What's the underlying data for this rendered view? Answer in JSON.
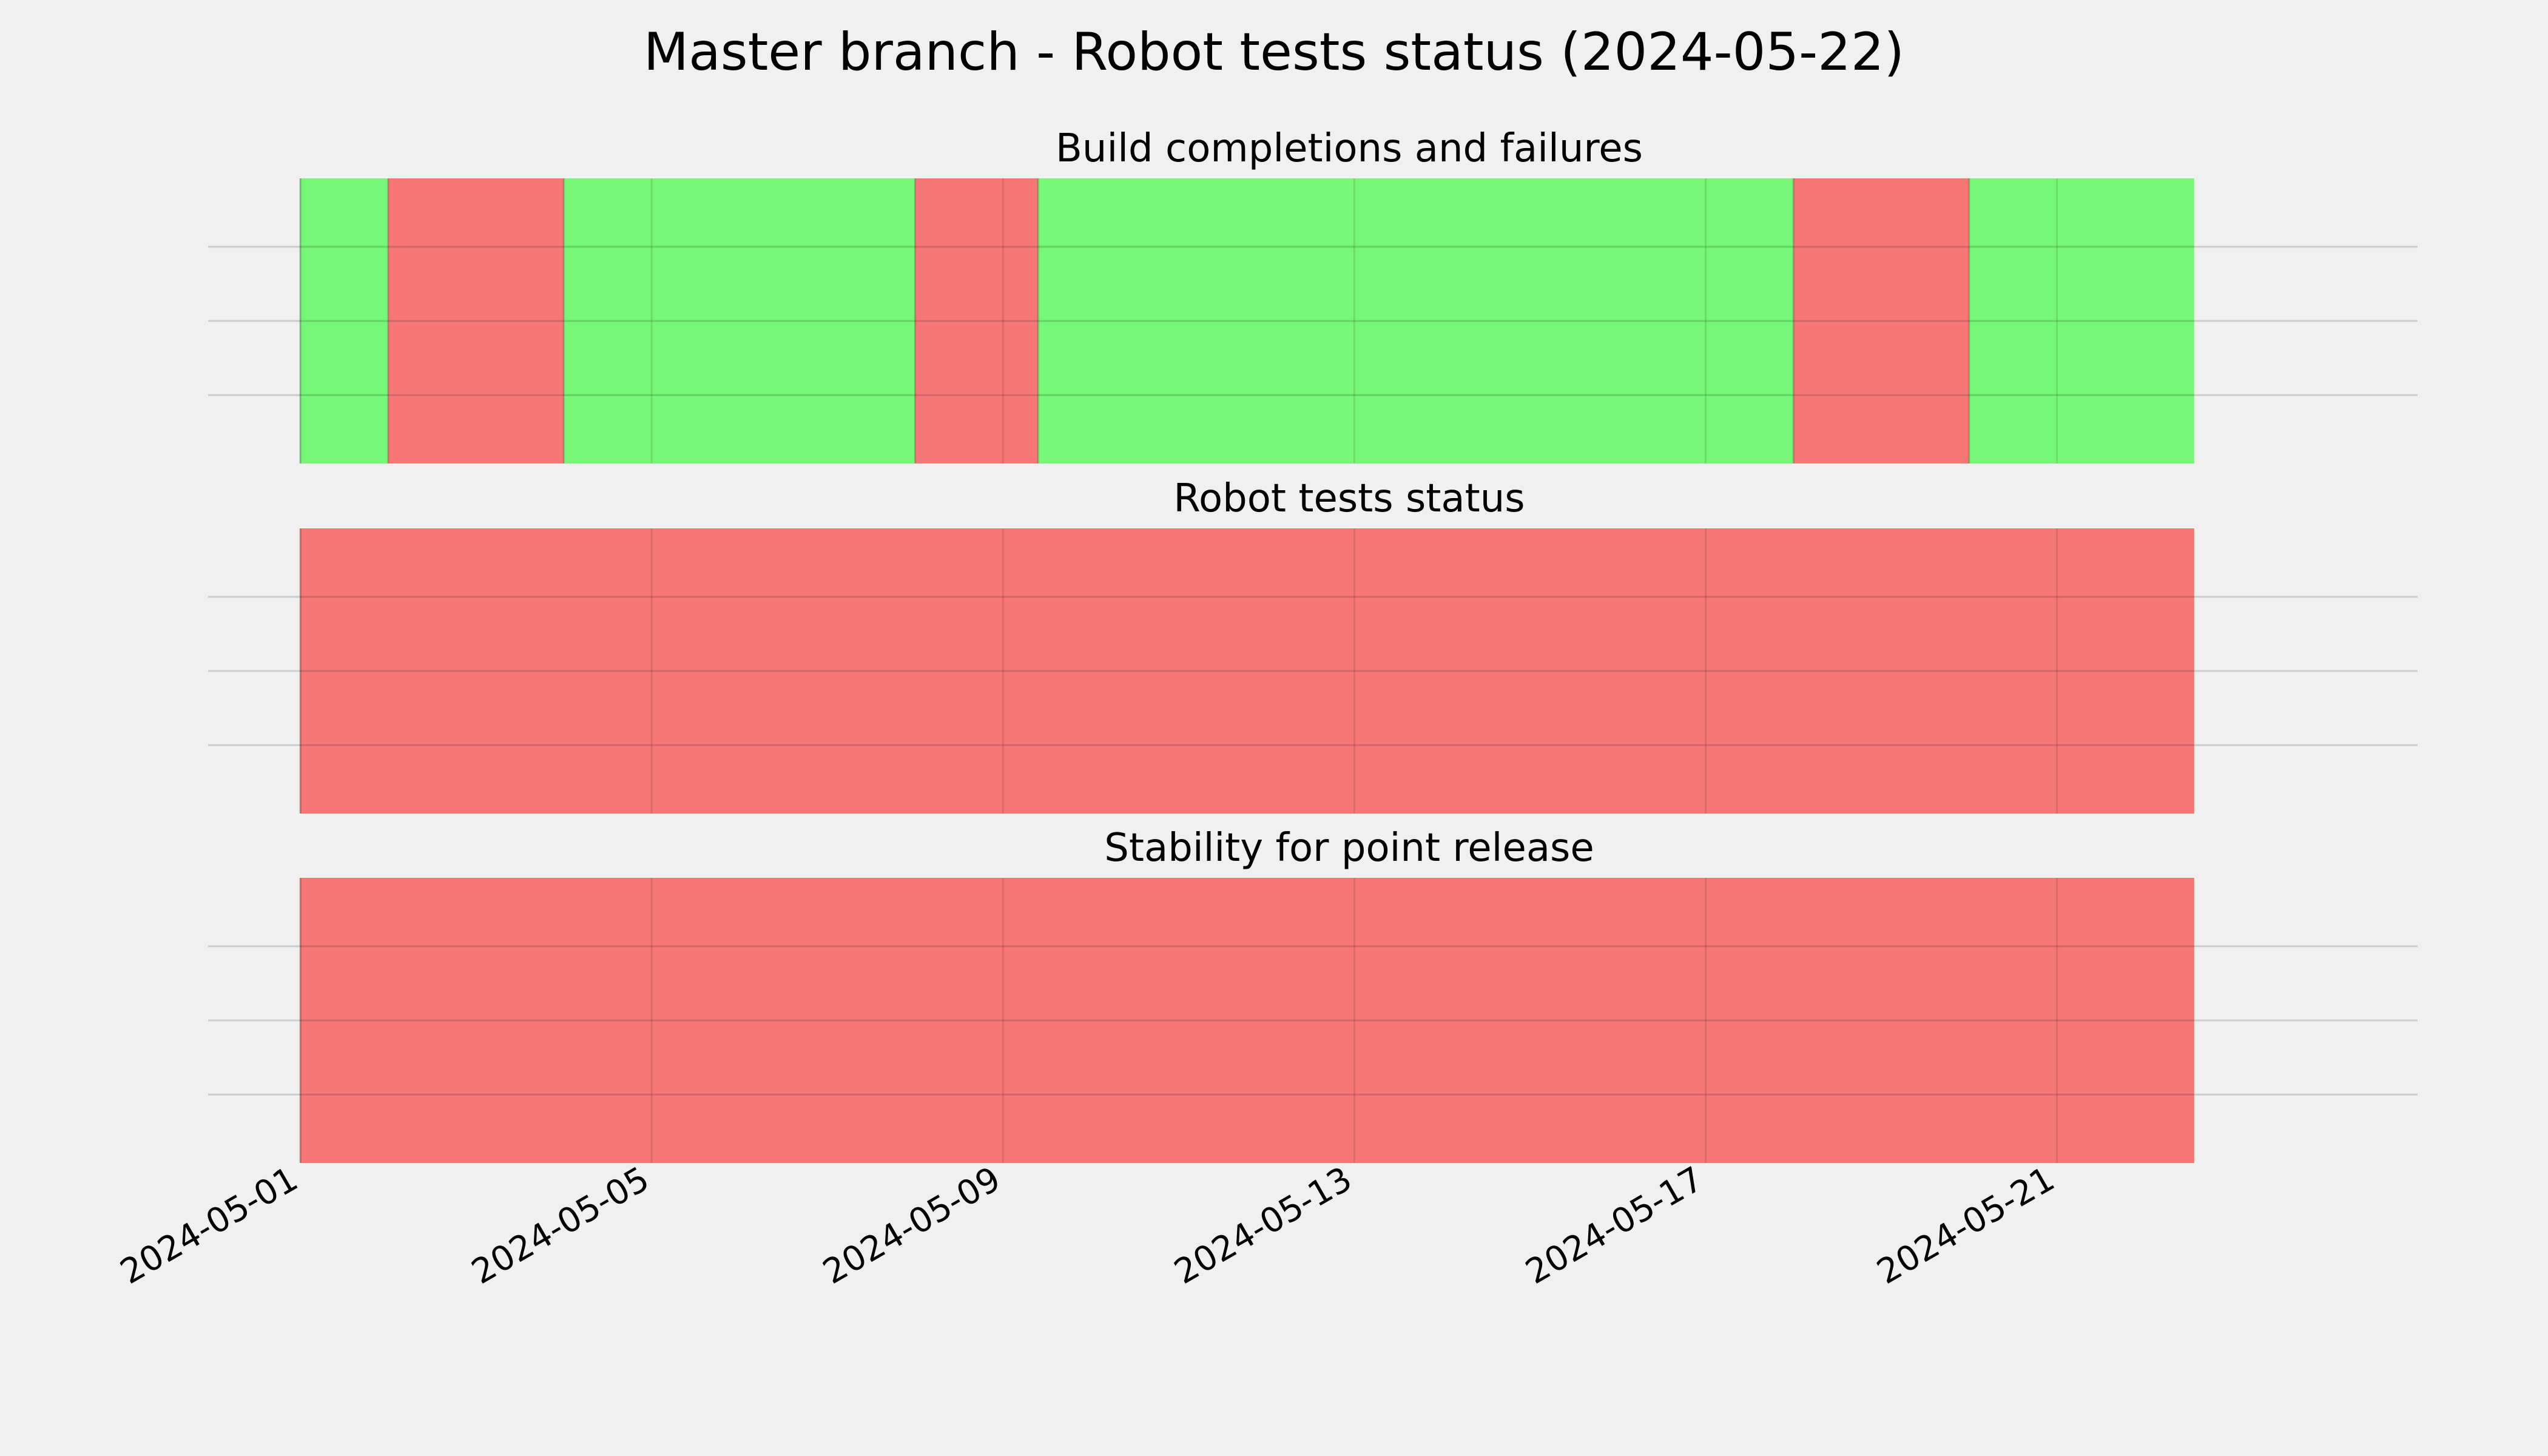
{
  "chart_data": {
    "type": "timeline",
    "title": "Master branch - Robot tests status (2024-05-22)",
    "x_range": [
      "2024-05-01",
      "2024-05-24"
    ],
    "x_ticks": [
      "2024-05-01",
      "2024-05-05",
      "2024-05-09",
      "2024-05-13",
      "2024-05-17",
      "2024-05-21"
    ],
    "grid": true,
    "colors": {
      "pass": "#77f777",
      "fail": "#f77777",
      "background": "#f0f0f0"
    },
    "panels": [
      {
        "title": "Build completions and failures",
        "segments": [
          {
            "start": "2024-05-01T00:00",
            "end": "2024-05-02T00:00",
            "status": "pass"
          },
          {
            "start": "2024-05-02T00:00",
            "end": "2024-05-04T00:00",
            "status": "fail"
          },
          {
            "start": "2024-05-04T00:00",
            "end": "2024-05-08T00:00",
            "status": "pass"
          },
          {
            "start": "2024-05-08T00:00",
            "end": "2024-05-09T09:36",
            "status": "fail"
          },
          {
            "start": "2024-05-09T09:36",
            "end": "2024-05-18T00:00",
            "status": "pass"
          },
          {
            "start": "2024-05-18T00:00",
            "end": "2024-05-20T00:00",
            "status": "fail"
          },
          {
            "start": "2024-05-20T00:00",
            "end": "2024-05-22T13:30",
            "status": "pass"
          }
        ]
      },
      {
        "title": "Robot tests status",
        "segments": [
          {
            "start": "2024-05-01T00:00",
            "end": "2024-05-22T13:30",
            "status": "fail"
          }
        ]
      },
      {
        "title": "Stability for point release",
        "segments": [
          {
            "start": "2024-05-01T00:00",
            "end": "2024-05-22T13:30",
            "status": "fail"
          }
        ]
      }
    ]
  }
}
